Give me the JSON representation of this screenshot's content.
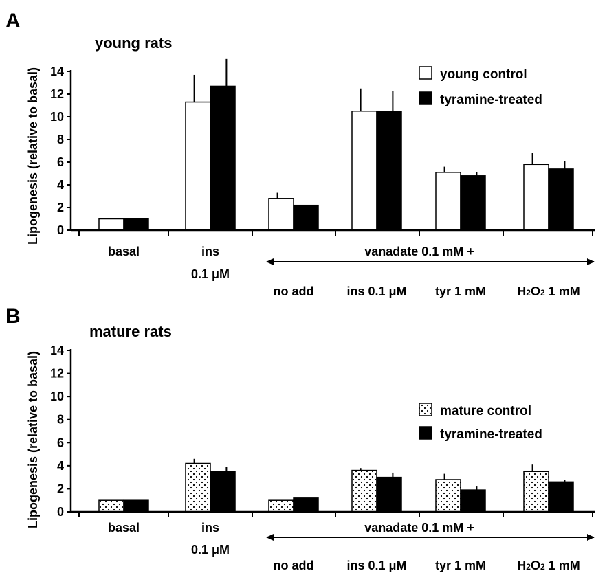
{
  "chart_data": [
    {
      "type": "bar",
      "panel": "A",
      "title": "young rats",
      "ylabel": "Lipogenesis (relative to basal)",
      "ylim": [
        0,
        14
      ],
      "yticks": [
        "0",
        "2",
        "4",
        "6",
        "8",
        "10",
        "12",
        "14"
      ],
      "categories": [
        "basal",
        "ins 0.1 μM",
        "no add",
        "ins 0.1 μM",
        "tyr 1 mM",
        "H2O2 1 mM"
      ],
      "category_labels": {
        "basal": "basal",
        "ins_line1": "ins",
        "ins_line2": "0.1 μM",
        "vanadate": "vanadate 0.1 mM +",
        "no_add": "no add",
        "v_ins": "ins 0.1 μM",
        "v_tyr": "tyr 1 mM",
        "v_h2o2_a": "H",
        "v_h2o2_sub1": "2",
        "v_h2o2_b": "O",
        "v_h2o2_sub2": "2",
        "v_h2o2_c": " 1 mM"
      },
      "legend": {
        "position": "top-right"
      },
      "series": [
        {
          "name": "young control",
          "fill": "#ffffff",
          "values": [
            1.0,
            11.3,
            2.8,
            10.5,
            5.1,
            5.8
          ],
          "errors": [
            0.1,
            2.4,
            0.5,
            2.0,
            0.5,
            1.0
          ]
        },
        {
          "name": "tyramine-treated",
          "fill": "#000000",
          "values": [
            1.0,
            12.7,
            2.2,
            10.5,
            4.8,
            5.4
          ],
          "errors": [
            0.1,
            2.4,
            0.1,
            1.8,
            0.3,
            0.7
          ]
        }
      ]
    },
    {
      "type": "bar",
      "panel": "B",
      "title": "mature rats",
      "ylabel": "Lipogenesis (relative to basal)",
      "ylim": [
        0,
        14
      ],
      "yticks": [
        "0",
        "2",
        "4",
        "6",
        "8",
        "10",
        "12",
        "14"
      ],
      "categories": [
        "basal",
        "ins 0.1 μM",
        "no add",
        "ins 0.1 μM",
        "tyr 1 mM",
        "H2O2 1 mM"
      ],
      "category_labels": {
        "basal": "basal",
        "ins_line1": "ins",
        "ins_line2": "0.1 μM",
        "vanadate": "vanadate 0.1 mM +",
        "no_add": "no add",
        "v_ins": "ins 0.1 μM",
        "v_tyr": "tyr 1 mM",
        "v_h2o2_a": "H",
        "v_h2o2_sub1": "2",
        "v_h2o2_b": "O",
        "v_h2o2_sub2": "2",
        "v_h2o2_c": " 1 mM"
      },
      "legend": {
        "position": "right"
      },
      "series": [
        {
          "name": "mature control",
          "fill": "dotted",
          "values": [
            1.0,
            4.2,
            1.0,
            3.6,
            2.8,
            3.5
          ],
          "errors": [
            0.1,
            0.4,
            0.1,
            0.2,
            0.5,
            0.6
          ]
        },
        {
          "name": "tyramine-treated",
          "fill": "#000000",
          "values": [
            1.0,
            3.5,
            1.2,
            3.0,
            1.9,
            2.6
          ],
          "errors": [
            0.1,
            0.4,
            0.1,
            0.4,
            0.3,
            0.2
          ]
        }
      ]
    }
  ]
}
